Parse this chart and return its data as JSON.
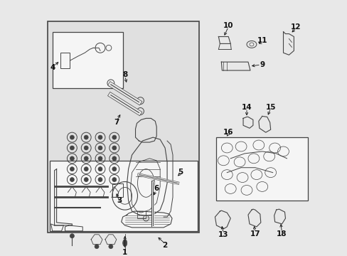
{
  "background_color": "#e8e8e8",
  "fig_width": 4.89,
  "fig_height": 3.6,
  "dpi": 100,
  "text_color": "#111111",
  "line_color": "#444444",
  "label_fontsize": 7.5,
  "box_bg": "#e0e0e0",
  "white": "#f5f5f5"
}
